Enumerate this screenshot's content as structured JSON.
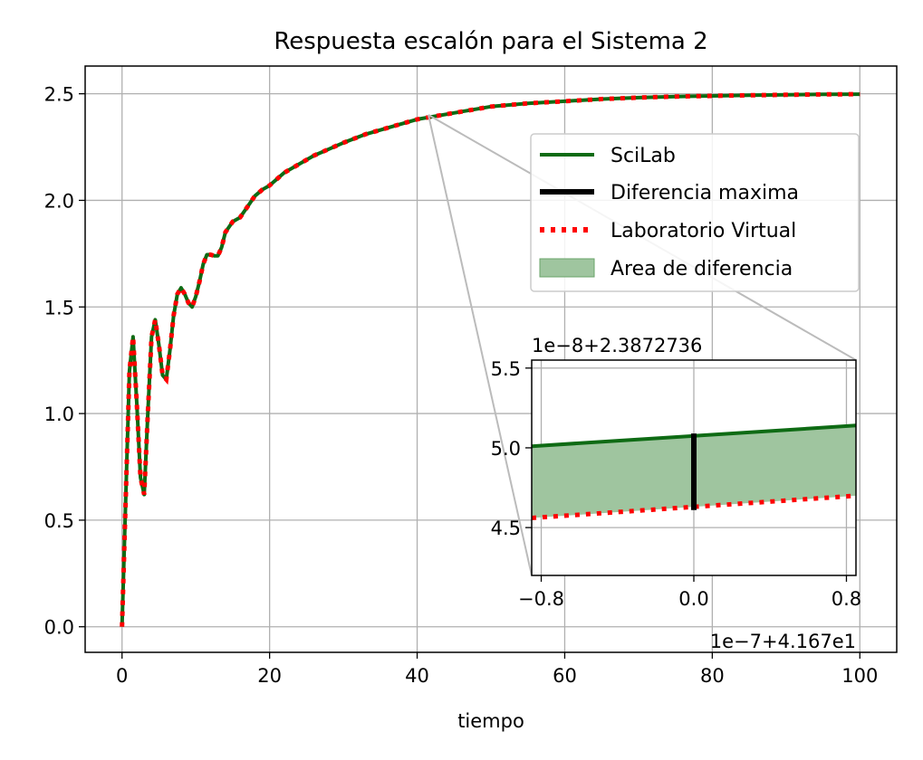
{
  "chart_data": [
    {
      "type": "line",
      "title": "Respuesta escalón para el Sistema 2",
      "xlabel": "tiempo",
      "ylabel": "",
      "xlim": [
        -5,
        105
      ],
      "ylim": [
        -0.12,
        2.63
      ],
      "xticks": [
        0,
        20,
        40,
        60,
        80,
        100
      ],
      "xtick_labels": [
        "0",
        "20",
        "40",
        "60",
        "80",
        "100"
      ],
      "yticks": [
        0.0,
        0.5,
        1.0,
        1.5,
        2.0,
        2.5
      ],
      "ytick_labels": [
        "0.0",
        "0.5",
        "1.0",
        "1.5",
        "2.0",
        "2.5"
      ],
      "grid": true,
      "legend_position": "upper right",
      "series": [
        {
          "name": "SciLab",
          "color": "#0e6b14",
          "style": "solid",
          "x": [
            0,
            0.5,
            1,
            1.5,
            2,
            2.5,
            3,
            3.5,
            4,
            4.5,
            5,
            5.5,
            6,
            6.5,
            7,
            7.5,
            8,
            8.5,
            9,
            9.5,
            10,
            10.5,
            11,
            11.5,
            12,
            12.5,
            13,
            13.5,
            14,
            15,
            16,
            17,
            18,
            19,
            20,
            22,
            24,
            26,
            28,
            30,
            33,
            36,
            40,
            45,
            50,
            55,
            60,
            65,
            70,
            75,
            80,
            85,
            90,
            95,
            100
          ],
          "y": [
            0,
            0.6,
            1.2,
            1.36,
            1.05,
            0.7,
            0.62,
            1.0,
            1.36,
            1.44,
            1.32,
            1.18,
            1.16,
            1.3,
            1.46,
            1.56,
            1.59,
            1.56,
            1.52,
            1.5,
            1.55,
            1.62,
            1.7,
            1.745,
            1.745,
            1.74,
            1.74,
            1.78,
            1.85,
            1.9,
            1.92,
            1.97,
            2.02,
            2.05,
            2.07,
            2.13,
            2.17,
            2.21,
            2.24,
            2.27,
            2.31,
            2.34,
            2.38,
            2.41,
            2.44,
            2.455,
            2.465,
            2.475,
            2.482,
            2.487,
            2.49,
            2.493,
            2.495,
            2.497,
            2.498
          ]
        },
        {
          "name": "Laboratorio Virtual",
          "color": "#ff0000",
          "style": "dotted",
          "x": [
            0,
            0.5,
            1,
            1.5,
            2,
            2.5,
            3,
            3.5,
            4,
            4.5,
            5,
            5.5,
            6,
            6.5,
            7,
            7.5,
            8,
            8.5,
            9,
            9.5,
            10,
            10.5,
            11,
            11.5,
            12,
            12.5,
            13,
            13.5,
            14,
            15,
            16,
            17,
            18,
            19,
            20,
            22,
            24,
            26,
            28,
            30,
            33,
            36,
            40,
            45,
            50,
            55,
            60,
            65,
            70,
            75,
            80,
            85,
            90,
            95,
            100
          ],
          "y": [
            0,
            0.6,
            1.2,
            1.36,
            1.05,
            0.7,
            0.62,
            1.0,
            1.36,
            1.44,
            1.32,
            1.18,
            1.16,
            1.3,
            1.46,
            1.56,
            1.59,
            1.56,
            1.52,
            1.5,
            1.55,
            1.62,
            1.7,
            1.745,
            1.745,
            1.74,
            1.74,
            1.78,
            1.85,
            1.9,
            1.92,
            1.97,
            2.02,
            2.05,
            2.07,
            2.13,
            2.17,
            2.21,
            2.24,
            2.27,
            2.31,
            2.34,
            2.38,
            2.41,
            2.44,
            2.455,
            2.465,
            2.475,
            2.482,
            2.487,
            2.49,
            2.493,
            2.495,
            2.497,
            2.498
          ]
        }
      ],
      "legend": [
        {
          "label": "SciLab",
          "kind": "line",
          "color": "#0e6b14"
        },
        {
          "label": "Diferencia maxima",
          "kind": "line-thick",
          "color": "#000000"
        },
        {
          "label": "Laboratorio Virtual",
          "kind": "dotted",
          "color": "#ff0000"
        },
        {
          "label": "Area de diferencia",
          "kind": "patch",
          "color": "#9fc59f"
        }
      ]
    },
    {
      "type": "line",
      "title": "",
      "xlim": [
        -0.85,
        0.85
      ],
      "ylim": [
        4.2,
        5.55
      ],
      "xticks": [
        -0.8,
        0.0,
        0.8
      ],
      "xtick_labels": [
        "−0.8",
        "0.0",
        "0.8"
      ],
      "yticks": [
        4.5,
        5.0,
        5.5
      ],
      "ytick_labels": [
        "4.5",
        "5.0",
        "5.5"
      ],
      "x_offset_label": "1e−7+4.167e1",
      "y_offset_label": "1e−8+2.3872736",
      "grid": true,
      "series": [
        {
          "name": "SciLab",
          "color": "#0e6b14",
          "x": [
            -0.85,
            0.85
          ],
          "y": [
            5.01,
            5.14
          ]
        },
        {
          "name": "Laboratorio Virtual",
          "color": "#ff0000",
          "x": [
            -0.85,
            0.85
          ],
          "y": [
            4.56,
            4.7
          ]
        }
      ],
      "max_difference": {
        "x": 0.0,
        "y": [
          4.61,
          5.09
        ]
      }
    }
  ]
}
